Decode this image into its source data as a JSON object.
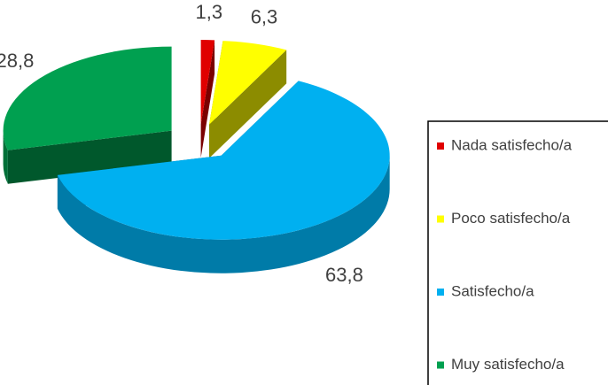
{
  "chart_data": {
    "type": "pie",
    "categories": [
      "Nada satisfecho/a",
      "Poco satisfecho/a",
      "Satisfecho/a",
      "Muy satisfecho/a"
    ],
    "values": [
      1.3,
      6.3,
      63.8,
      28.8
    ],
    "value_labels": [
      "1,3",
      "6,3",
      "63,8",
      "28,8"
    ],
    "colors": [
      "#e00000",
      "#ffff00",
      "#00b0f0",
      "#00a050"
    ],
    "legend": "right"
  }
}
